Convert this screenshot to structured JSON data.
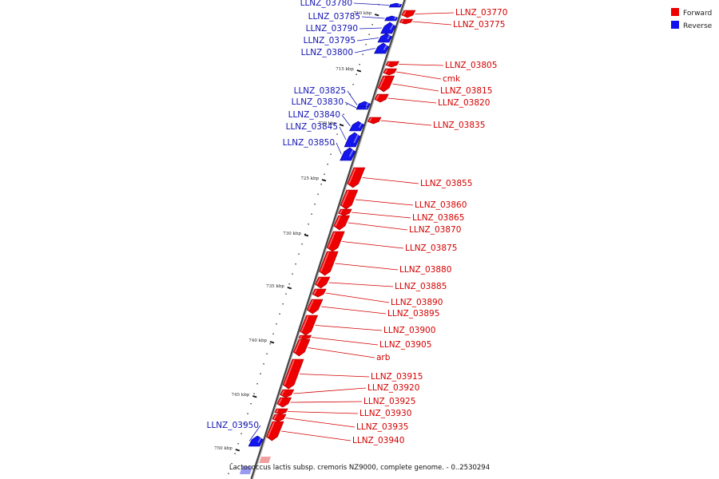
{
  "caption": "Lactococcus lactis subsp. cremoris NZ9000, complete genome. - 0..2530294",
  "legend": [
    {
      "label": "Forward",
      "color": "#ee0000"
    },
    {
      "label": "Reverse",
      "color": "#0000ee"
    }
  ],
  "colors": {
    "forward": "#ee0000",
    "reverse": "#1515ee",
    "forward_label": "#d40000",
    "reverse_label": "#1414b4",
    "backbone": "#555555"
  },
  "ticks": [
    "710 kbp",
    "715 kbp",
    "720 kbp",
    "725 kbp",
    "730 kbp",
    "735 kbp",
    "740 kbp",
    "745 kbp",
    "750 kbp"
  ],
  "genes": [
    {
      "label": "LLNZ_03770",
      "strand": "forward"
    },
    {
      "label": "LLNZ_03775",
      "strand": "forward"
    },
    {
      "label": "LLNZ_03780",
      "strand": "reverse"
    },
    {
      "label": "LLNZ_03785",
      "strand": "reverse"
    },
    {
      "label": "LLNZ_03790",
      "strand": "reverse"
    },
    {
      "label": "LLNZ_03795",
      "strand": "reverse"
    },
    {
      "label": "LLNZ_03800",
      "strand": "reverse"
    },
    {
      "label": "LLNZ_03805",
      "strand": "forward"
    },
    {
      "label": "cmk",
      "strand": "forward"
    },
    {
      "label": "LLNZ_03815",
      "strand": "forward"
    },
    {
      "label": "LLNZ_03820",
      "strand": "forward"
    },
    {
      "label": "LLNZ_03825",
      "strand": "reverse"
    },
    {
      "label": "LLNZ_03830",
      "strand": "reverse"
    },
    {
      "label": "LLNZ_03835",
      "strand": "forward"
    },
    {
      "label": "LLNZ_03840",
      "strand": "reverse"
    },
    {
      "label": "LLNZ_03845",
      "strand": "reverse"
    },
    {
      "label": "LLNZ_03850",
      "strand": "reverse"
    },
    {
      "label": "LLNZ_03855",
      "strand": "forward"
    },
    {
      "label": "LLNZ_03860",
      "strand": "forward"
    },
    {
      "label": "LLNZ_03865",
      "strand": "forward"
    },
    {
      "label": "LLNZ_03870",
      "strand": "forward"
    },
    {
      "label": "LLNZ_03875",
      "strand": "forward"
    },
    {
      "label": "LLNZ_03880",
      "strand": "forward"
    },
    {
      "label": "LLNZ_03885",
      "strand": "forward"
    },
    {
      "label": "LLNZ_03890",
      "strand": "forward"
    },
    {
      "label": "LLNZ_03895",
      "strand": "forward"
    },
    {
      "label": "LLNZ_03900",
      "strand": "forward"
    },
    {
      "label": "LLNZ_03905",
      "strand": "forward"
    },
    {
      "label": "arb",
      "strand": "forward"
    },
    {
      "label": "LLNZ_03915",
      "strand": "forward"
    },
    {
      "label": "LLNZ_03920",
      "strand": "forward"
    },
    {
      "label": "LLNZ_03925",
      "strand": "forward"
    },
    {
      "label": "LLNZ_03930",
      "strand": "forward"
    },
    {
      "label": "LLNZ_03935",
      "strand": "forward"
    },
    {
      "label": "LLNZ_03940",
      "strand": "forward"
    },
    {
      "label": "LLNZ_03950",
      "strand": "reverse"
    }
  ]
}
